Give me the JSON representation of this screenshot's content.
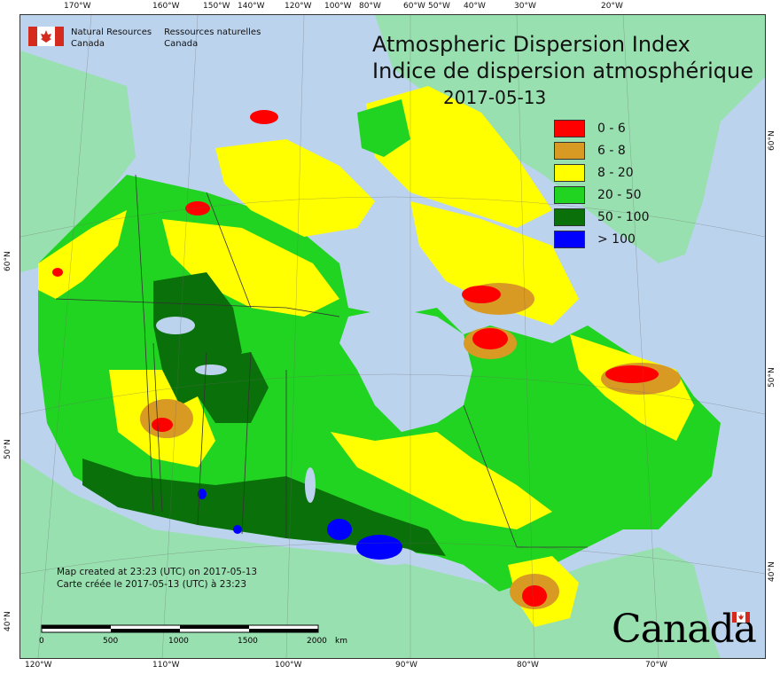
{
  "title": {
    "en": "Atmospheric Dispersion Index",
    "fr": "Indice de dispersion atmosphérique",
    "date": "2017-05-13"
  },
  "organization": {
    "en_line1": "Natural Resources",
    "en_line2": "Canada",
    "fr_line1": "Ressources naturelles",
    "fr_line2": "Canada",
    "wordmark": "Canada"
  },
  "legend": [
    {
      "label": "0 - 6",
      "color": "#ff0000"
    },
    {
      "label": "6 - 8",
      "color": "#d89a22"
    },
    {
      "label": "8 - 20",
      "color": "#ffff00"
    },
    {
      "label": "20 - 50",
      "color": "#22d422"
    },
    {
      "label": "50 - 100",
      "color": "#0a700a"
    },
    {
      "label": "> 100",
      "color": "#0000ff"
    }
  ],
  "credit": {
    "en": "Map created at 23:23 (UTC) on 2017-05-13",
    "fr": "Carte créée le 2017-05-13 (UTC) à 23:23"
  },
  "scale_bar": {
    "labels": [
      "0",
      "500",
      "1000",
      "1500",
      "2000"
    ],
    "unit": "km"
  },
  "top_ticks": [
    "170°W",
    "160°W",
    "150°W",
    "140°W",
    "120°W",
    "100°W",
    "80°W",
    "60°W",
    "50°W",
    "40°W",
    "30°W",
    "20°W"
  ],
  "bottom_ticks": [
    "120°W",
    "110°W",
    "100°W",
    "90°W",
    "80°W",
    "70°W"
  ],
  "left_ticks": [
    "60°N",
    "50°N",
    "40°N"
  ],
  "right_ticks": [
    "60°N",
    "50°N",
    "40°N"
  ],
  "colors": {
    "ocean": "#bcd3ee",
    "land_other": "#99e0b0",
    "lake": "#bcd3ee"
  }
}
